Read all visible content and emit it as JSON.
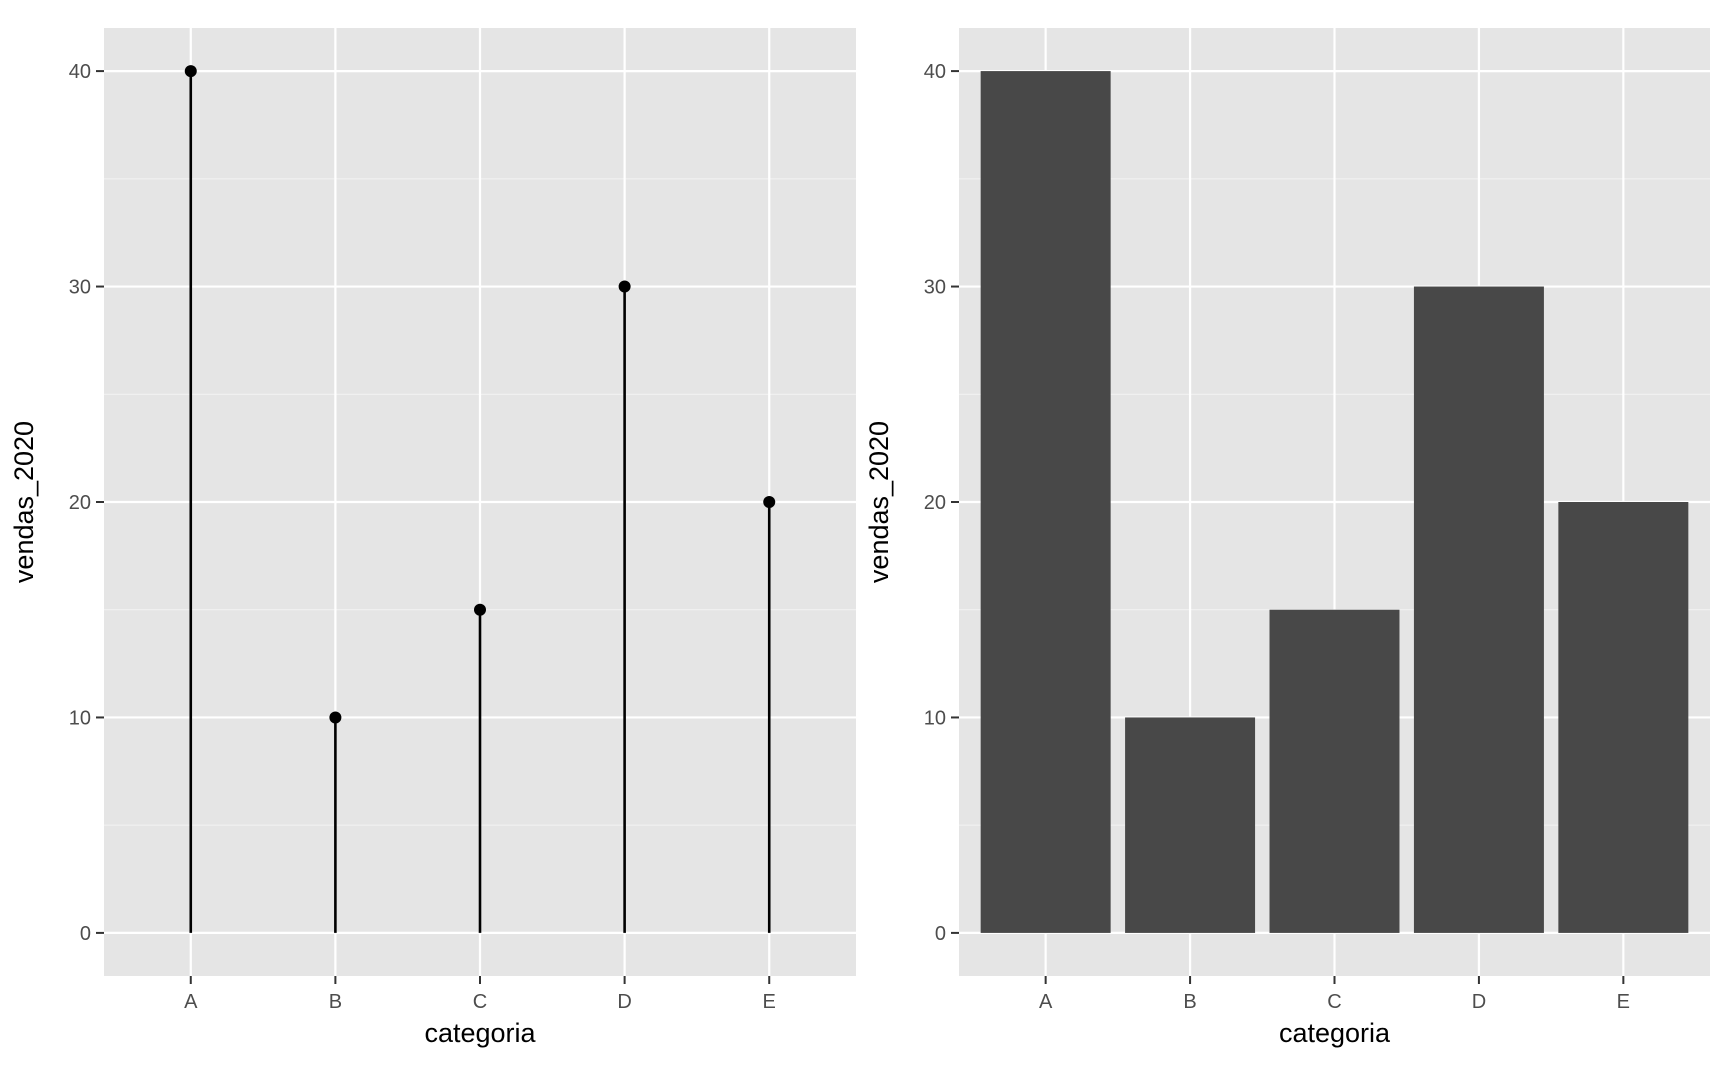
{
  "chart_data": [
    {
      "type": "lollipop",
      "categories": [
        "A",
        "B",
        "C",
        "D",
        "E"
      ],
      "values": [
        40,
        10,
        15,
        30,
        20
      ],
      "xlabel": "categoria",
      "ylabel": "vendas_2020",
      "ylim": [
        -2,
        42
      ],
      "yticks": [
        0,
        10,
        20,
        30,
        40
      ],
      "grid": true,
      "colors": {
        "panel": "#e5e5e5",
        "mark": "#000000"
      }
    },
    {
      "type": "bar",
      "categories": [
        "A",
        "B",
        "C",
        "D",
        "E"
      ],
      "values": [
        40,
        10,
        15,
        30,
        20
      ],
      "xlabel": "categoria",
      "ylabel": "vendas_2020",
      "ylim": [
        -2,
        42
      ],
      "yticks": [
        0,
        10,
        20,
        30,
        40
      ],
      "grid": true,
      "colors": {
        "panel": "#e5e5e5",
        "mark": "#484848"
      }
    }
  ]
}
